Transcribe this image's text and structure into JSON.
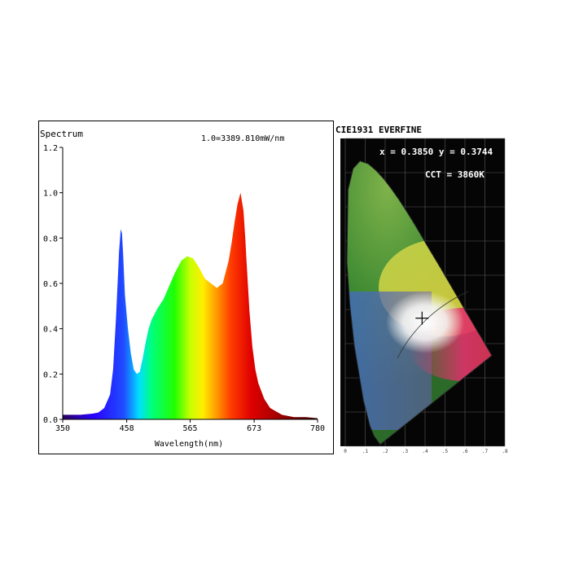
{
  "chart_data": [
    {
      "type": "area",
      "title": "Spectrum",
      "scale_note": "1.0=3389.810mW/nm",
      "xlabel": "Wavelength(nm)",
      "ylabel": "",
      "xlim": [
        350,
        780
      ],
      "ylim": [
        0,
        1.2
      ],
      "x_ticks": [
        "350",
        "458",
        "565",
        "673",
        "780"
      ],
      "y_ticks": [
        "0.0",
        "0.2",
        "0.4",
        "0.6",
        "0.8",
        "1.0",
        "1.2"
      ],
      "grid": false,
      "fill": "spectral-rainbow",
      "x": [
        350,
        380,
        400,
        410,
        420,
        430,
        435,
        440,
        445,
        448,
        450,
        452,
        455,
        460,
        465,
        470,
        475,
        480,
        485,
        490,
        495,
        500,
        510,
        520,
        530,
        540,
        550,
        560,
        570,
        580,
        590,
        600,
        610,
        620,
        630,
        635,
        640,
        645,
        650,
        655,
        658,
        660,
        665,
        670,
        675,
        680,
        690,
        700,
        720,
        740,
        760,
        780
      ],
      "values": [
        0.02,
        0.02,
        0.025,
        0.03,
        0.05,
        0.11,
        0.22,
        0.45,
        0.74,
        0.84,
        0.82,
        0.73,
        0.55,
        0.4,
        0.29,
        0.22,
        0.2,
        0.21,
        0.27,
        0.34,
        0.4,
        0.44,
        0.49,
        0.53,
        0.59,
        0.65,
        0.7,
        0.72,
        0.71,
        0.67,
        0.62,
        0.6,
        0.58,
        0.6,
        0.7,
        0.78,
        0.87,
        0.95,
        1.0,
        0.92,
        0.8,
        0.7,
        0.48,
        0.32,
        0.22,
        0.16,
        0.09,
        0.05,
        0.02,
        0.01,
        0.01,
        0.005
      ]
    },
    {
      "type": "scatter",
      "title": "CIE1931 EVERFINE",
      "annotations": [
        "x = 0.3850 y = 0.3744",
        "CCT = 3860K"
      ],
      "xlim": [
        0,
        0.8
      ],
      "ylim": [
        0,
        0.9
      ],
      "x_ticks": [
        "0",
        ".1",
        ".2",
        ".3",
        ".4",
        ".5",
        ".6",
        ".7",
        ".8"
      ],
      "background": "#000000",
      "points": [
        {
          "x": 0.385,
          "y": 0.3744
        }
      ]
    }
  ]
}
